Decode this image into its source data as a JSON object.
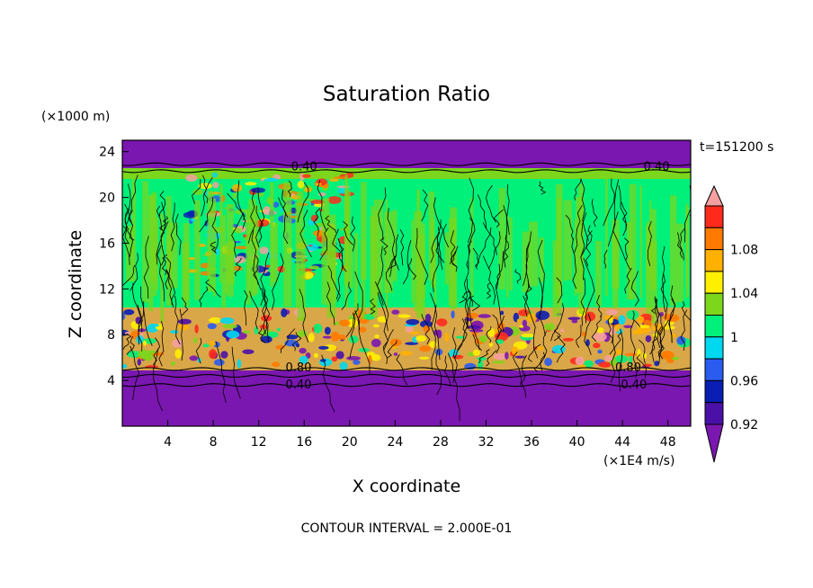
{
  "chart_data": {
    "type": "heatmap",
    "title": "Saturation Ratio",
    "xlabel": "X coordinate",
    "ylabel": "Z coordinate",
    "x_unit_label": "(×1E4 m/s)",
    "y_unit_label": "(×1000 m)",
    "time_label": "t=151200 s",
    "footer": "CONTOUR INTERVAL = 2.000E-01",
    "xlim": [
      0,
      50
    ],
    "ylim": [
      0,
      25
    ],
    "x_ticks": [
      "4",
      "8",
      "12",
      "16",
      "20",
      "24",
      "28",
      "32",
      "36",
      "40",
      "44",
      "48"
    ],
    "y_ticks": [
      "4",
      "8",
      "12",
      "16",
      "20",
      "24"
    ],
    "contour_labels": [
      {
        "text": "0.40",
        "x": 16,
        "z": 22.7
      },
      {
        "text": "0.40",
        "x": 47,
        "z": 22.7
      },
      {
        "text": "0.80",
        "x": 15.5,
        "z": 5.1
      },
      {
        "text": "0.80",
        "x": 44.5,
        "z": 5.1
      },
      {
        "text": "0.40",
        "x": 15.5,
        "z": 3.6
      },
      {
        "text": "0.40",
        "x": 45,
        "z": 3.6
      }
    ],
    "colorbar": {
      "levels": [
        0.92,
        0.94,
        0.96,
        0.98,
        1.0,
        1.02,
        1.04,
        1.06,
        1.08,
        1.1
      ],
      "tick_labels": [
        "0.92",
        "0.96",
        "1",
        "1.04",
        "1.08"
      ],
      "colors": [
        "#7a17b0",
        "#4b10a8",
        "#0a1eb4",
        "#2a5cf0",
        "#00d8f0",
        "#00f07a",
        "#7cd61c",
        "#fff000",
        "#ffb000",
        "#ff7a00",
        "#ff2a1c",
        "#f4a0a0"
      ],
      "extend": "both"
    },
    "regions": [
      {
        "z_range": [
          0,
          5
        ],
        "value": "< 0.92",
        "description_color": "#7a17b0"
      },
      {
        "z_range": [
          5,
          10
        ],
        "value": "0.92 - 1.10",
        "description_color": "mixed"
      },
      {
        "z_range": [
          10,
          22.3
        ],
        "value": "0.98 - 1.06",
        "description_color": "#00f07a"
      },
      {
        "z_range": [
          22.3,
          25
        ],
        "value": "< 0.92",
        "description_color": "#7a17b0"
      }
    ]
  }
}
